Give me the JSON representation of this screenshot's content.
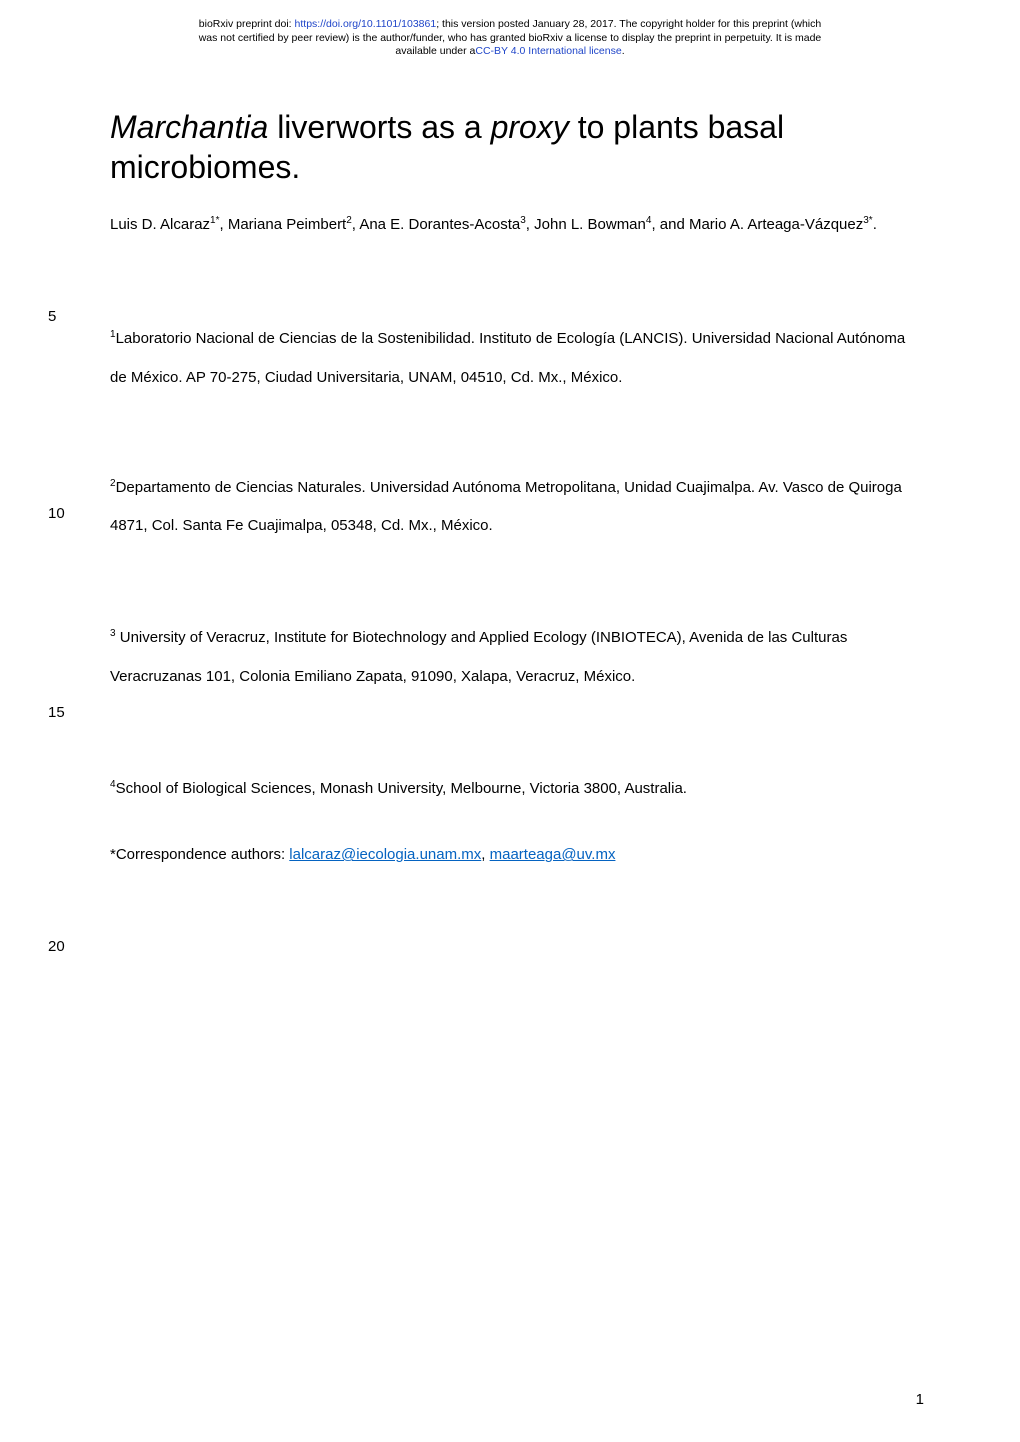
{
  "header": {
    "line1_prefix": "bioRxiv preprint doi: ",
    "doi_url": "https://doi.org/10.1101/103861",
    "line1_suffix": "; this version posted January 28, 2017. The copyright holder for this preprint (which",
    "line2": "was not certified by peer review) is the author/funder, who has granted bioRxiv a license to display the preprint in perpetuity. It is made",
    "line3_prefix": "available under a",
    "license_text": "CC-BY 4.0 International license",
    "line3_suffix": "."
  },
  "title": {
    "part1_italic": "Marchantia",
    "part2": " liverworts as a ",
    "part3_italic": "proxy",
    "part4": " to plants basal microbiomes."
  },
  "authors": {
    "a1": "Luis D. Alcaraz",
    "a1_sup": "1*",
    "sep1": ", ",
    "a2": "Mariana Peimbert",
    "a2_sup": "2",
    "sep2": ", ",
    "a3": "Ana E. Dorantes-Acosta",
    "a3_sup": "3",
    "sep3": ", ",
    "a4": "John L. Bowman",
    "a4_sup": "4",
    "sep4": ", and ",
    "a5": "Mario A. Arteaga-Vázquez",
    "a5_sup": "3*",
    "end": "."
  },
  "line_numbers": {
    "n5": "5",
    "n10": "10",
    "n15": "15",
    "n20": "20"
  },
  "affiliations": {
    "a1_sup": "1",
    "a1_text": "Laboratorio Nacional de Ciencias de la Sostenibilidad. Instituto de Ecología (LANCIS). Universidad Nacional Autónoma de México. AP 70-275, Ciudad Universitaria, UNAM, 04510, Cd. Mx., México.",
    "a2_sup": "2",
    "a2_text": "Departamento de Ciencias Naturales. Universidad Autónoma Metropolitana, Unidad Cuajimalpa. Av. Vasco de Quiroga 4871, Col. Santa Fe Cuajimalpa, 05348, Cd. Mx., México.",
    "a3_sup": "3",
    "a3_text": " University of Veracruz, Institute for Biotechnology and Applied Ecology (INBIOTECA), Avenida de las Culturas Veracruzanas 101, Colonia Emiliano Zapata, 91090, Xalapa, Veracruz, México.",
    "a4_sup": "4",
    "a4_text": "School of Biological Sciences, Monash University, Melbourne, Victoria 3800, Australia."
  },
  "correspondence": {
    "prefix": "*Correspondence authors: ",
    "email1": "lalcaraz@iecologia.unam.mx",
    "sep": ", ",
    "email2": "maarteaga@uv.mx"
  },
  "page_number": "1"
}
